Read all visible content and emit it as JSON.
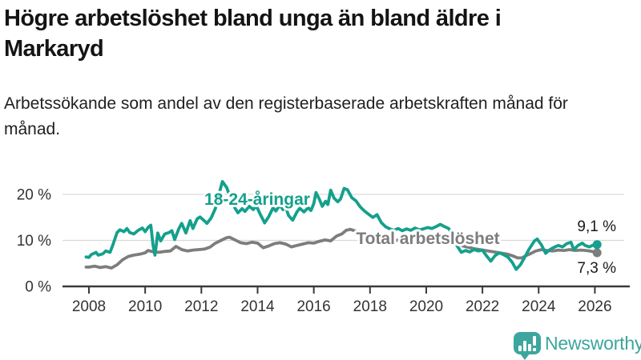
{
  "header": {
    "title": "Högre arbetslöshet bland unga än bland äldre i Markaryd",
    "subtitle": "Arbetssökande som andel av den registerbaserade arbetskraften månad för månad."
  },
  "branding": {
    "name": "Newsworthy",
    "color": "#3ca59e"
  },
  "chart_data": {
    "type": "line",
    "title": "Högre arbetslöshet bland unga än bland äldre i Markaryd",
    "subtitle": "Arbetssökande som andel av den registerbaserade arbetskraften månad för månad.",
    "xlabel": "",
    "ylabel": "",
    "grid": "horizontal",
    "gridline_color": "#d9d9d9",
    "axis_color": "#3a3a3a",
    "xlim": [
      2007.9,
      2026.4
    ],
    "ylim": [
      0,
      24.5
    ],
    "y_ticks": [
      {
        "value": 0,
        "label": "0 %"
      },
      {
        "value": 10,
        "label": "10 %"
      },
      {
        "value": 20,
        "label": "20 %"
      }
    ],
    "x_ticks": [
      {
        "value": 2008,
        "label": "2008"
      },
      {
        "value": 2010,
        "label": "2010"
      },
      {
        "value": 2012,
        "label": "2012"
      },
      {
        "value": 2014,
        "label": "2014"
      },
      {
        "value": 2016,
        "label": "2016"
      },
      {
        "value": 2018,
        "label": "2018"
      },
      {
        "value": 2020,
        "label": "2020"
      },
      {
        "value": 2022,
        "label": "2022"
      },
      {
        "value": 2024,
        "label": "2024"
      },
      {
        "value": 2026,
        "label": "2026"
      }
    ],
    "series": [
      {
        "name": "18-24-åringar",
        "color": "#14a08c",
        "end_value": 9.1,
        "end_value_label": "9,1 %",
        "points": [
          [
            2007.9,
            6.4
          ],
          [
            2008.0,
            6.3
          ],
          [
            2008.08,
            6.9
          ],
          [
            2008.25,
            7.4
          ],
          [
            2008.33,
            6.8
          ],
          [
            2008.5,
            7.1
          ],
          [
            2008.6,
            7.7
          ],
          [
            2008.75,
            7.4
          ],
          [
            2008.85,
            9.0
          ],
          [
            2009.0,
            11.7
          ],
          [
            2009.1,
            12.3
          ],
          [
            2009.25,
            11.9
          ],
          [
            2009.35,
            12.6
          ],
          [
            2009.45,
            11.7
          ],
          [
            2009.6,
            11.4
          ],
          [
            2009.75,
            12.2
          ],
          [
            2009.9,
            12.7
          ],
          [
            2010.0,
            11.9
          ],
          [
            2010.1,
            12.8
          ],
          [
            2010.2,
            13.3
          ],
          [
            2010.28,
            9.0
          ],
          [
            2010.35,
            6.8
          ],
          [
            2010.45,
            11.6
          ],
          [
            2010.55,
            9.9
          ],
          [
            2010.7,
            11.4
          ],
          [
            2010.85,
            11.7
          ],
          [
            2010.95,
            12.1
          ],
          [
            2011.05,
            10.2
          ],
          [
            2011.2,
            12.6
          ],
          [
            2011.3,
            13.7
          ],
          [
            2011.45,
            11.6
          ],
          [
            2011.6,
            14.3
          ],
          [
            2011.7,
            12.6
          ],
          [
            2011.85,
            14.7
          ],
          [
            2011.95,
            15.1
          ],
          [
            2012.1,
            14.3
          ],
          [
            2012.2,
            13.7
          ],
          [
            2012.35,
            14.9
          ],
          [
            2012.5,
            17.0
          ],
          [
            2012.6,
            19.5
          ],
          [
            2012.75,
            22.8
          ],
          [
            2012.9,
            21.5
          ],
          [
            2013.05,
            19.0
          ],
          [
            2013.2,
            17.0
          ],
          [
            2013.3,
            16.0
          ],
          [
            2013.45,
            16.9
          ],
          [
            2013.55,
            16.3
          ],
          [
            2013.7,
            17.4
          ],
          [
            2013.85,
            16.7
          ],
          [
            2013.95,
            17.6
          ],
          [
            2014.1,
            15.6
          ],
          [
            2014.25,
            13.8
          ],
          [
            2014.4,
            15.2
          ],
          [
            2014.55,
            17.1
          ],
          [
            2014.65,
            16.4
          ],
          [
            2014.8,
            17.7
          ],
          [
            2014.9,
            16.7
          ],
          [
            2015.0,
            17.3
          ],
          [
            2015.1,
            15.4
          ],
          [
            2015.25,
            14.4
          ],
          [
            2015.4,
            16.2
          ],
          [
            2015.5,
            17.0
          ],
          [
            2015.65,
            16.2
          ],
          [
            2015.8,
            17.1
          ],
          [
            2015.9,
            16.5
          ],
          [
            2016.0,
            18.0
          ],
          [
            2016.08,
            20.4
          ],
          [
            2016.2,
            18.9
          ],
          [
            2016.3,
            17.4
          ],
          [
            2016.42,
            18.5
          ],
          [
            2016.5,
            17.8
          ],
          [
            2016.6,
            20.9
          ],
          [
            2016.72,
            19.2
          ],
          [
            2016.85,
            18.4
          ],
          [
            2016.95,
            19.0
          ],
          [
            2017.08,
            21.3
          ],
          [
            2017.2,
            21.0
          ],
          [
            2017.35,
            19.3
          ],
          [
            2017.5,
            18.6
          ],
          [
            2017.65,
            17.3
          ],
          [
            2017.8,
            16.4
          ],
          [
            2017.95,
            15.7
          ],
          [
            2018.1,
            15.0
          ],
          [
            2018.25,
            15.6
          ],
          [
            2018.4,
            13.9
          ],
          [
            2018.55,
            13.0
          ],
          [
            2018.7,
            12.5
          ],
          [
            2018.85,
            12.2
          ],
          [
            2019.0,
            12.6
          ],
          [
            2019.15,
            12.1
          ],
          [
            2019.3,
            12.5
          ],
          [
            2019.45,
            12.2
          ],
          [
            2019.6,
            12.7
          ],
          [
            2019.75,
            12.3
          ],
          [
            2019.9,
            12.5
          ],
          [
            2020.05,
            12.8
          ],
          [
            2020.2,
            12.6
          ],
          [
            2020.35,
            13.0
          ],
          [
            2020.5,
            13.5
          ],
          [
            2020.65,
            13.0
          ],
          [
            2020.8,
            12.6
          ],
          [
            2020.95,
            11.0
          ],
          [
            2021.1,
            8.8
          ],
          [
            2021.25,
            7.4
          ],
          [
            2021.4,
            7.8
          ],
          [
            2021.55,
            7.5
          ],
          [
            2021.7,
            8.0
          ],
          [
            2021.85,
            7.7
          ],
          [
            2022.0,
            7.9
          ],
          [
            2022.15,
            6.6
          ],
          [
            2022.3,
            5.5
          ],
          [
            2022.45,
            6.7
          ],
          [
            2022.6,
            7.3
          ],
          [
            2022.75,
            6.9
          ],
          [
            2022.9,
            6.4
          ],
          [
            2023.05,
            5.3
          ],
          [
            2023.2,
            3.7
          ],
          [
            2023.35,
            4.7
          ],
          [
            2023.5,
            6.3
          ],
          [
            2023.65,
            8.0
          ],
          [
            2023.85,
            9.9
          ],
          [
            2023.95,
            10.3
          ],
          [
            2024.1,
            9.0
          ],
          [
            2024.25,
            7.2
          ],
          [
            2024.4,
            8.0
          ],
          [
            2024.55,
            8.5
          ],
          [
            2024.7,
            8.9
          ],
          [
            2024.85,
            8.6
          ],
          [
            2025.0,
            9.3
          ],
          [
            2025.15,
            9.6
          ],
          [
            2025.25,
            8.0
          ],
          [
            2025.4,
            8.9
          ],
          [
            2025.55,
            9.4
          ],
          [
            2025.65,
            8.9
          ],
          [
            2025.8,
            8.6
          ],
          [
            2025.95,
            9.0
          ],
          [
            2026.08,
            9.1
          ]
        ]
      },
      {
        "name": "Total arbetslöshet",
        "color": "#7d7d7d",
        "end_value": 7.3,
        "end_value_label": "7,3 %",
        "points": [
          [
            2007.9,
            4.2
          ],
          [
            2008.0,
            4.2
          ],
          [
            2008.2,
            4.4
          ],
          [
            2008.4,
            4.1
          ],
          [
            2008.6,
            4.3
          ],
          [
            2008.8,
            4.0
          ],
          [
            2009.0,
            4.7
          ],
          [
            2009.2,
            5.8
          ],
          [
            2009.4,
            6.5
          ],
          [
            2009.6,
            6.8
          ],
          [
            2009.8,
            7.0
          ],
          [
            2010.0,
            7.3
          ],
          [
            2010.1,
            7.8
          ],
          [
            2010.3,
            7.5
          ],
          [
            2010.5,
            7.4
          ],
          [
            2010.7,
            7.6
          ],
          [
            2010.9,
            7.7
          ],
          [
            2011.1,
            8.7
          ],
          [
            2011.3,
            8.0
          ],
          [
            2011.5,
            7.7
          ],
          [
            2011.7,
            7.9
          ],
          [
            2011.9,
            8.0
          ],
          [
            2012.1,
            8.1
          ],
          [
            2012.3,
            8.5
          ],
          [
            2012.5,
            9.4
          ],
          [
            2012.7,
            10.0
          ],
          [
            2012.9,
            10.6
          ],
          [
            2013.0,
            10.7
          ],
          [
            2013.2,
            10.1
          ],
          [
            2013.4,
            9.5
          ],
          [
            2013.6,
            9.3
          ],
          [
            2013.8,
            9.6
          ],
          [
            2014.0,
            9.4
          ],
          [
            2014.2,
            8.4
          ],
          [
            2014.4,
            8.8
          ],
          [
            2014.6,
            9.3
          ],
          [
            2014.8,
            9.5
          ],
          [
            2015.0,
            9.2
          ],
          [
            2015.2,
            8.6
          ],
          [
            2015.4,
            8.9
          ],
          [
            2015.6,
            9.2
          ],
          [
            2015.8,
            9.5
          ],
          [
            2016.0,
            9.4
          ],
          [
            2016.2,
            9.8
          ],
          [
            2016.4,
            10.1
          ],
          [
            2016.6,
            9.9
          ],
          [
            2016.8,
            10.9
          ],
          [
            2017.0,
            11.4
          ],
          [
            2017.15,
            12.2
          ],
          [
            2017.3,
            12.4
          ],
          [
            2017.5,
            12.0
          ],
          [
            2017.7,
            11.4
          ],
          [
            2017.9,
            10.9
          ],
          [
            2018.1,
            10.5
          ],
          [
            2018.3,
            10.2
          ],
          [
            2018.5,
            10.0
          ],
          [
            2018.7,
            9.9
          ],
          [
            2018.9,
            10.0
          ],
          [
            2019.1,
            10.1
          ],
          [
            2019.3,
            9.9
          ],
          [
            2019.5,
            10.2
          ],
          [
            2019.7,
            10.3
          ],
          [
            2019.9,
            10.1
          ],
          [
            2020.1,
            10.2
          ],
          [
            2020.3,
            10.5
          ],
          [
            2020.5,
            10.6
          ],
          [
            2020.7,
            10.2
          ],
          [
            2020.9,
            9.8
          ],
          [
            2021.1,
            9.3
          ],
          [
            2021.3,
            8.8
          ],
          [
            2021.5,
            8.5
          ],
          [
            2021.7,
            8.2
          ],
          [
            2021.9,
            8.0
          ],
          [
            2022.1,
            7.8
          ],
          [
            2022.3,
            7.6
          ],
          [
            2022.5,
            7.4
          ],
          [
            2022.7,
            7.2
          ],
          [
            2022.9,
            7.0
          ],
          [
            2023.1,
            6.6
          ],
          [
            2023.25,
            6.2
          ],
          [
            2023.4,
            6.2
          ],
          [
            2023.55,
            6.7
          ],
          [
            2023.7,
            7.1
          ],
          [
            2023.9,
            7.7
          ],
          [
            2024.1,
            8.0
          ],
          [
            2024.3,
            7.8
          ],
          [
            2024.5,
            7.7
          ],
          [
            2024.7,
            7.9
          ],
          [
            2024.9,
            7.8
          ],
          [
            2025.1,
            8.0
          ],
          [
            2025.3,
            7.8
          ],
          [
            2025.5,
            7.9
          ],
          [
            2025.7,
            7.8
          ],
          [
            2025.9,
            7.6
          ],
          [
            2026.08,
            7.3
          ]
        ]
      }
    ]
  }
}
